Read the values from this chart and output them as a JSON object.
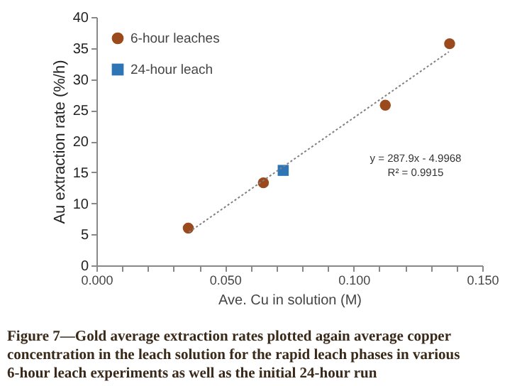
{
  "chart_data": {
    "type": "scatter",
    "xlabel": "Ave. Cu in solution (M)",
    "ylabel": "Au extraction rate (%/h)",
    "series": [
      {
        "name": "6-hour leaches",
        "marker": "circle",
        "color": "#9a4a1c",
        "x": [
          0.0357,
          0.0649,
          0.1123,
          0.1373
        ],
        "values": [
          6.0,
          13.3,
          25.8,
          35.7
        ]
      },
      {
        "name": "24-hour leach",
        "marker": "square",
        "color": "#2e75b6",
        "x": [
          0.0726
        ],
        "values": [
          15.3
        ]
      },
      {
        "type": "line",
        "line_style": "dotted",
        "color": "#808080",
        "x": [
          0.036,
          0.137
        ],
        "values": [
          5.37,
          34.4
        ]
      }
    ],
    "xlim": [
      0,
      0.15
    ],
    "ylim": [
      0,
      40
    ],
    "xticks": [
      {
        "value": 0,
        "label": "0.000"
      },
      {
        "value": 0.01,
        "label": null
      },
      {
        "value": 0.02,
        "label": null
      },
      {
        "value": 0.03,
        "label": null
      },
      {
        "value": 0.04,
        "label": null
      },
      {
        "value": 0.05,
        "label": "0.050"
      },
      {
        "value": 0.06,
        "label": null
      },
      {
        "value": 0.07,
        "label": null
      },
      {
        "value": 0.08,
        "label": null
      },
      {
        "value": 0.09,
        "label": null
      },
      {
        "value": 0.1,
        "label": "0.100"
      },
      {
        "value": 0.11,
        "label": null
      },
      {
        "value": 0.12,
        "label": null
      },
      {
        "value": 0.13,
        "label": null
      },
      {
        "value": 0.14,
        "label": null
      },
      {
        "value": 0.15,
        "label": "0.150"
      }
    ],
    "yticks": [
      0,
      5,
      10,
      15,
      20,
      25,
      30,
      35,
      40
    ],
    "grid": false,
    "legend": "top left",
    "annotations": [
      "y = 287.9x - 4.9968\nR² = 0.9915",
      "Figure 7—Gold average extraction rates plotted again average copper\nconcentration in the leach solution for the rapid leach phases in various\n6-hour leach experiments as well as the initial 24-hour run"
    ]
  }
}
